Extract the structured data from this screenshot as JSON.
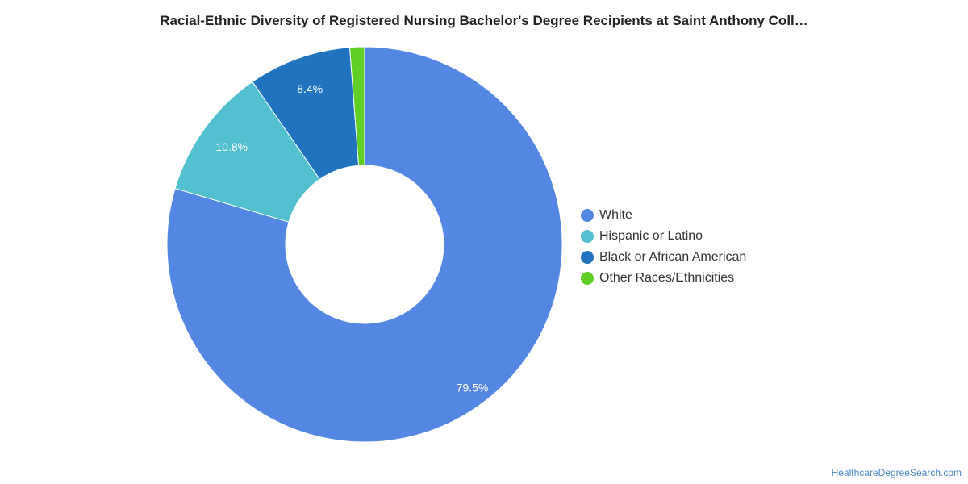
{
  "title": "Racial-Ethnic Diversity of Registered Nursing Bachelor's Degree Recipients at Saint Anthony Coll…",
  "credit": "HealthcareDegreeSearch.com",
  "chart_data": {
    "type": "pie",
    "donut": true,
    "legend_position": "right",
    "title": "Racial-Ethnic Diversity of Registered Nursing Bachelor's Degree Recipients at Saint Anthony Coll…",
    "slices": [
      {
        "name": "White",
        "value": 79.5,
        "label": "79.5%",
        "color": "#5486e3"
      },
      {
        "name": "Hispanic or Latino",
        "value": 10.8,
        "label": "10.8%",
        "color": "#52c1cf"
      },
      {
        "name": "Black or African American",
        "value": 8.4,
        "label": "8.4%",
        "color": "#1f73bf"
      },
      {
        "name": "Other Races/Ethnicities",
        "value": 1.2,
        "label": "",
        "color": "#5fcf26"
      }
    ]
  }
}
